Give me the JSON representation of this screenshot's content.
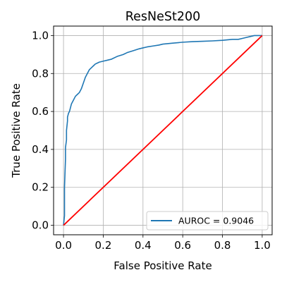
{
  "chart_data": {
    "type": "line",
    "title": "ResNeSt200",
    "xlabel": "False Positive Rate",
    "ylabel": "True Positive Rate",
    "xlim": [
      -0.05,
      1.05
    ],
    "ylim": [
      -0.05,
      1.05
    ],
    "xticks": [
      "0.0",
      "0.2",
      "0.4",
      "0.6",
      "0.8",
      "1.0"
    ],
    "yticks": [
      "0.0",
      "0.2",
      "0.4",
      "0.6",
      "0.8",
      "1.0"
    ],
    "grid": true,
    "legend_position": "lower-right",
    "series": [
      {
        "name": "AUROC = 0.9046",
        "color": "#1f77b4",
        "x": [
          0.0,
          0.005,
          0.005,
          0.01,
          0.01,
          0.015,
          0.015,
          0.02,
          0.02,
          0.025,
          0.03,
          0.035,
          0.04,
          0.05,
          0.06,
          0.07,
          0.08,
          0.09,
          0.1,
          0.11,
          0.12,
          0.13,
          0.14,
          0.15,
          0.16,
          0.17,
          0.18,
          0.2,
          0.22,
          0.24,
          0.25,
          0.27,
          0.3,
          0.32,
          0.35,
          0.38,
          0.4,
          0.42,
          0.45,
          0.48,
          0.5,
          0.55,
          0.6,
          0.65,
          0.7,
          0.75,
          0.8,
          0.85,
          0.88,
          0.9,
          0.92,
          0.94,
          0.96,
          0.98,
          1.0
        ],
        "y": [
          0.0,
          0.05,
          0.2,
          0.35,
          0.41,
          0.45,
          0.5,
          0.55,
          0.57,
          0.59,
          0.6,
          0.62,
          0.64,
          0.66,
          0.68,
          0.69,
          0.7,
          0.72,
          0.75,
          0.78,
          0.8,
          0.82,
          0.83,
          0.84,
          0.85,
          0.855,
          0.86,
          0.865,
          0.87,
          0.875,
          0.88,
          0.89,
          0.9,
          0.91,
          0.92,
          0.93,
          0.935,
          0.94,
          0.945,
          0.95,
          0.955,
          0.96,
          0.965,
          0.968,
          0.97,
          0.972,
          0.975,
          0.98,
          0.98,
          0.985,
          0.99,
          0.995,
          1.0,
          1.0,
          1.0
        ]
      },
      {
        "name": "",
        "color": "#ff0000",
        "x": [
          0.0,
          1.0
        ],
        "y": [
          0.0,
          1.0
        ]
      }
    ]
  }
}
